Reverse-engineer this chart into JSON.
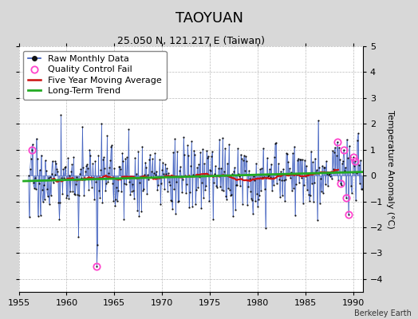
{
  "title": "TAOYUAN",
  "subtitle": "25.050 N, 121.217 E (Taiwan)",
  "ylabel": "Temperature Anomaly (°C)",
  "credit": "Berkeley Earth",
  "xlim": [
    1955,
    1991
  ],
  "ylim": [
    -4.5,
    5.0
  ],
  "yticks": [
    -4,
    -3,
    -2,
    -1,
    0,
    1,
    2,
    3,
    4,
    5
  ],
  "xticks": [
    1955,
    1960,
    1965,
    1970,
    1975,
    1980,
    1985,
    1990
  ],
  "bg_color": "#d8d8d8",
  "plot_bg": "#ffffff",
  "line_color": "#3355bb",
  "fill_color": "#8899cc",
  "dot_color": "#111111",
  "ma_color": "#cc1111",
  "trend_color": "#22aa22",
  "qc_color": "#ff44cc",
  "title_fontsize": 13,
  "subtitle_fontsize": 9,
  "ylabel_fontsize": 8,
  "tick_fontsize": 8,
  "legend_fontsize": 8,
  "credit_fontsize": 7,
  "trend_slope": 0.01,
  "trend_intercept": -0.05
}
